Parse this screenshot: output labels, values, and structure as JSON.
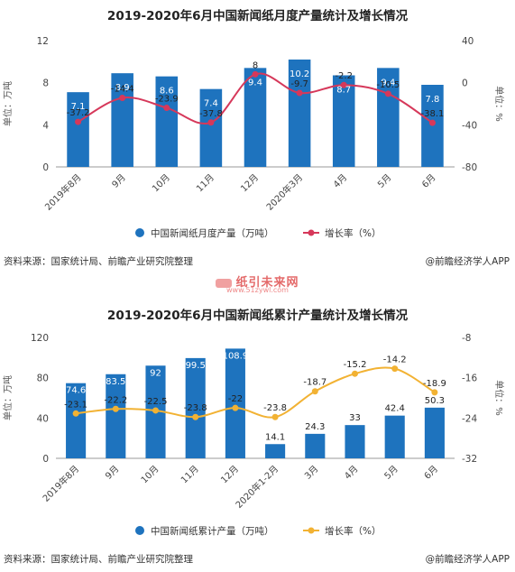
{
  "chart_data": [
    {
      "type": "bar",
      "title": "2019-2020年6月中国新闻纸月度产量统计及增长情况",
      "categories": [
        "2019年8月",
        "9月",
        "10月",
        "11月",
        "12月",
        "2020年3月",
        "4月",
        "5月",
        "6月"
      ],
      "series": [
        {
          "name": "中国新闻纸月度产量（万吨）",
          "type": "bar",
          "axis": "left",
          "values": [
            7.1,
            8.9,
            8.6,
            7.4,
            9.4,
            10.2,
            8.7,
            9.4,
            7.8
          ],
          "color": "#1e73be"
        },
        {
          "name": "增长率（%）",
          "type": "line",
          "axis": "right",
          "values": [
            -37.2,
            -14.4,
            -23.9,
            -37.8,
            8,
            -9.7,
            -2.2,
            -10.5,
            -38.1
          ],
          "color": "#d6385a"
        }
      ],
      "ylabel": "单位：万吨",
      "ylabel_right": "单位：%",
      "ylim": [
        0,
        12
      ],
      "yticks": [
        0,
        4,
        8,
        12
      ],
      "ylim_right": [
        -80,
        40
      ],
      "yticks_right": [
        -80,
        -40,
        0,
        40
      ],
      "legend_position": "bottom",
      "bar_labels": [
        "7.1",
        "8.9",
        "8.6",
        "7.4",
        "9.4",
        "10.2",
        "8.7",
        "9.4",
        "7.8"
      ],
      "line_labels": [
        "-37.2",
        "-14.4",
        "-23.9",
        "-37.8",
        "8",
        "-9.7",
        "-2.2",
        "-10.5",
        "-38.1"
      ]
    },
    {
      "type": "bar",
      "title": "2019-2020年6月中国新闻纸累计产量统计及增长情况",
      "categories": [
        "2019年8月",
        "9月",
        "10月",
        "11月",
        "12月",
        "2020年1-2月",
        "3月",
        "4月",
        "5月",
        "6月"
      ],
      "series": [
        {
          "name": "中国新闻纸累计产量（万吨）",
          "type": "bar",
          "axis": "left",
          "values": [
            74.6,
            83.5,
            92,
            99.5,
            108.9,
            14.1,
            24.3,
            33,
            42.4,
            50.3
          ],
          "color": "#1e73be"
        },
        {
          "name": "增长率（%）",
          "type": "line",
          "axis": "right",
          "values": [
            -23.1,
            -22.2,
            -22.5,
            -23.8,
            -22,
            -23.8,
            -18.7,
            -15.2,
            -14.2,
            -18.9
          ],
          "color": "#f2b233"
        }
      ],
      "ylabel": "单位：万吨",
      "ylabel_right": "单位：%",
      "ylim": [
        0,
        120
      ],
      "yticks": [
        0,
        40,
        80,
        120
      ],
      "ylim_right": [
        -32,
        -8
      ],
      "yticks_right": [
        -32,
        -24,
        -16,
        -8
      ],
      "legend_position": "bottom",
      "bar_labels": [
        "74.6",
        "83.5",
        "92",
        "99.5",
        "108.9",
        "14.1",
        "24.3",
        "33",
        "42.4",
        "50.3"
      ],
      "line_labels": [
        "-23.1",
        "-22.2",
        "-22.5",
        "-23.8",
        "-22",
        "-23.8",
        "-18.7",
        "-15.2",
        "-14.2",
        "-18.9"
      ]
    }
  ],
  "footer": {
    "source": "资料来源：国家统计局、前瞻产业研究院整理",
    "app": "@前瞻经济学人APP"
  },
  "separator": {
    "brand": "纸引未来网",
    "url": "www.51zywl.com"
  }
}
